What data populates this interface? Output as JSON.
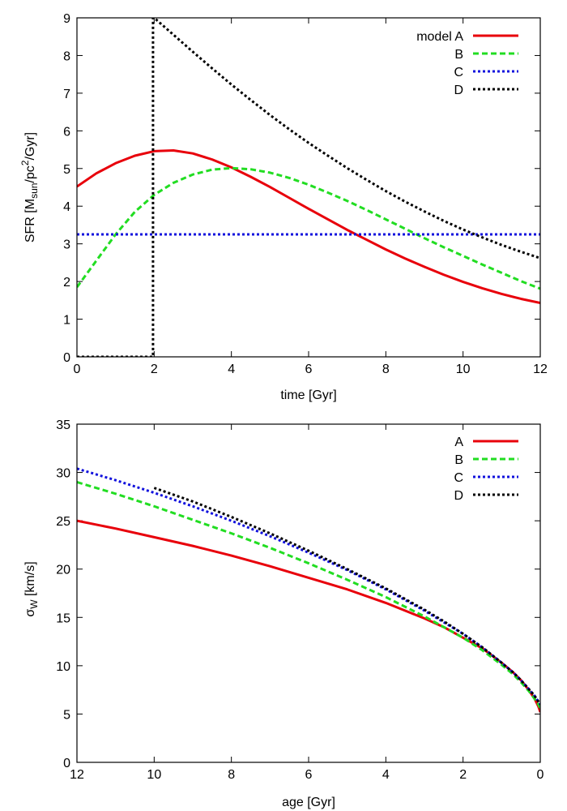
{
  "chart_data": [
    {
      "type": "line",
      "xlabel": "time [Gyr]",
      "ylabel_parts": [
        "SFR [M",
        "sun",
        "/pc",
        "2",
        "/Gyr]"
      ],
      "xlim": [
        0,
        12
      ],
      "ylim": [
        0,
        9
      ],
      "xticks": [
        0,
        2,
        4,
        6,
        8,
        10,
        12
      ],
      "yticks": [
        0,
        1,
        2,
        3,
        4,
        5,
        6,
        7,
        8,
        9
      ],
      "xtick_labels": [
        "0",
        "2",
        "4",
        "6",
        "8",
        "10",
        "12"
      ],
      "ytick_labels": [
        "0",
        "1",
        "2",
        "3",
        "4",
        "5",
        "6",
        "7",
        "8",
        "9"
      ],
      "legend_position": "top-right",
      "series": [
        {
          "name": "model A",
          "color": "#e8000b",
          "style": "solid",
          "x": [
            0,
            0.5,
            1,
            1.5,
            2,
            2.5,
            3,
            3.5,
            4,
            4.5,
            5,
            5.5,
            6,
            6.5,
            7,
            7.5,
            8,
            8.5,
            9,
            9.5,
            10,
            10.5,
            11,
            11.5,
            12
          ],
          "y": [
            4.52,
            4.87,
            5.14,
            5.34,
            5.46,
            5.48,
            5.4,
            5.24,
            5.03,
            4.78,
            4.51,
            4.22,
            3.93,
            3.65,
            3.37,
            3.11,
            2.85,
            2.61,
            2.39,
            2.18,
            1.99,
            1.82,
            1.67,
            1.54,
            1.43
          ]
        },
        {
          "name": "B",
          "color": "#22dd22",
          "style": "dashed",
          "x": [
            0,
            0.5,
            1,
            1.5,
            2,
            2.5,
            3,
            3.5,
            4,
            4.5,
            5,
            5.5,
            6,
            6.5,
            7,
            7.5,
            8,
            8.5,
            9,
            9.5,
            10,
            10.5,
            11,
            11.5,
            12
          ],
          "y": [
            1.85,
            2.55,
            3.25,
            3.85,
            4.3,
            4.62,
            4.84,
            4.97,
            5.01,
            4.98,
            4.89,
            4.75,
            4.57,
            4.36,
            4.14,
            3.9,
            3.65,
            3.4,
            3.15,
            2.91,
            2.68,
            2.45,
            2.23,
            2.01,
            1.81
          ]
        },
        {
          "name": "C",
          "color": "#1111dd",
          "style": "dotted",
          "x": [
            0,
            12
          ],
          "y": [
            3.25,
            3.25
          ]
        },
        {
          "name": "D",
          "color": "#000000",
          "style": "dotted",
          "x": [
            0,
            1.97,
            1.97,
            2,
            2.5,
            3,
            3.5,
            4,
            4.5,
            5,
            5.5,
            6,
            6.5,
            7,
            7.5,
            8,
            8.5,
            9,
            9.5,
            10,
            10.5,
            11,
            11.5,
            12
          ],
          "y": [
            0,
            0,
            9.0,
            9.0,
            8.55,
            8.1,
            7.66,
            7.23,
            6.82,
            6.42,
            6.04,
            5.68,
            5.34,
            5.01,
            4.7,
            4.4,
            4.12,
            3.86,
            3.61,
            3.38,
            3.17,
            2.97,
            2.79,
            2.62
          ]
        }
      ]
    },
    {
      "type": "line",
      "xlabel": "age [Gyr]",
      "ylabel_parts": [
        "σ",
        "W",
        " [km/s]"
      ],
      "xlim": [
        12,
        0
      ],
      "ylim": [
        0,
        35
      ],
      "xticks": [
        12,
        10,
        8,
        6,
        4,
        2,
        0
      ],
      "yticks": [
        0,
        5,
        10,
        15,
        20,
        25,
        30,
        35
      ],
      "xtick_labels": [
        "12",
        "10",
        "8",
        "6",
        "4",
        "2",
        "0"
      ],
      "ytick_labels": [
        "0",
        "5",
        "10",
        "15",
        "20",
        "25",
        "30",
        "35"
      ],
      "legend_position": "top-right",
      "series": [
        {
          "name": "A",
          "color": "#e8000b",
          "style": "solid",
          "x": [
            12,
            11,
            10,
            9,
            8,
            7,
            6,
            5,
            4,
            3,
            2.5,
            2,
            1.5,
            1,
            0.7,
            0.5,
            0.3,
            0.15,
            0.05,
            0
          ],
          "y": [
            25.0,
            24.2,
            23.3,
            22.4,
            21.4,
            20.3,
            19.1,
            17.9,
            16.5,
            14.9,
            14.0,
            12.9,
            11.8,
            10.3,
            9.3,
            8.5,
            7.5,
            6.6,
            5.8,
            5.2
          ]
        },
        {
          "name": "B",
          "color": "#22dd22",
          "style": "dashed",
          "x": [
            12,
            11,
            10,
            9,
            8,
            7,
            6,
            5,
            4,
            3,
            2.5,
            2,
            1.5,
            1,
            0.7,
            0.5,
            0.3,
            0.15,
            0.05,
            0
          ],
          "y": [
            29.0,
            27.8,
            26.5,
            25.1,
            23.7,
            22.2,
            20.6,
            18.9,
            17.1,
            15.1,
            14.0,
            12.9,
            11.6,
            10.1,
            9.1,
            8.3,
            7.4,
            6.6,
            6.0,
            5.6
          ]
        },
        {
          "name": "C",
          "color": "#1111dd",
          "style": "dotted",
          "x": [
            12,
            11,
            10,
            9,
            8,
            7,
            6,
            5,
            4,
            3,
            2.5,
            2,
            1.5,
            1,
            0.7,
            0.5,
            0.3,
            0.15,
            0.05,
            0
          ],
          "y": [
            30.4,
            29.2,
            27.9,
            26.5,
            25.0,
            23.4,
            21.7,
            19.9,
            17.9,
            15.7,
            14.5,
            13.3,
            11.9,
            10.3,
            9.3,
            8.5,
            7.6,
            6.9,
            6.3,
            6.0
          ]
        },
        {
          "name": "D",
          "color": "#000000",
          "style": "dotted",
          "x": [
            10,
            9,
            8,
            7,
            6,
            5,
            4,
            3,
            2.5,
            2,
            1.5,
            1,
            0.7,
            0.5,
            0.3,
            0.15,
            0.05,
            0
          ],
          "y": [
            28.4,
            27.0,
            25.4,
            23.7,
            21.9,
            20.0,
            18.0,
            15.8,
            14.6,
            13.3,
            11.9,
            10.3,
            9.3,
            8.5,
            7.6,
            6.9,
            6.3,
            6.0
          ]
        }
      ]
    }
  ]
}
